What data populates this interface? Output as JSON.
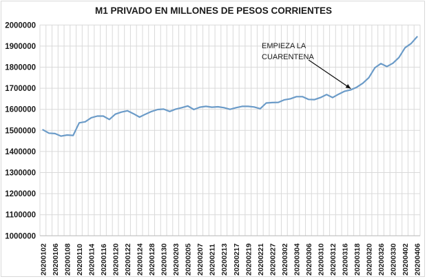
{
  "chart_data": {
    "type": "line",
    "title": "M1 PRIVADO EN MILLONES  DE PESOS CORRIENTES",
    "xlabel": "",
    "ylabel": "",
    "ylim": [
      1000000,
      2000000
    ],
    "yticks": [
      "1000000",
      "1100000",
      "1200000",
      "1300000",
      "1400000",
      "1500000",
      "1600000",
      "1700000",
      "1800000",
      "1900000",
      "2000000"
    ],
    "xtick_labels": [
      "20200102",
      "20200106",
      "20200108",
      "20200110",
      "20200114",
      "20200116",
      "20200120",
      "20200122",
      "20200124",
      "20200128",
      "20200130",
      "20200203",
      "20200205",
      "20200207",
      "20200211",
      "20200213",
      "20200217",
      "20200219",
      "20200221",
      "20200227",
      "20200302",
      "20200304",
      "20200306",
      "20200310",
      "20200312",
      "20200316",
      "20200318",
      "20200320",
      "20200326",
      "20200330",
      "20200402",
      "20200406"
    ],
    "xtick_every": 2,
    "grid": true,
    "legend": "none",
    "series": [
      {
        "name": "M1 privado",
        "color": "#6b9bc8",
        "values": [
          1503000,
          1487000,
          1485000,
          1473000,
          1478000,
          1476000,
          1536000,
          1541000,
          1560000,
          1568000,
          1568000,
          1552000,
          1577000,
          1587000,
          1593000,
          1579000,
          1563000,
          1577000,
          1590000,
          1599000,
          1601000,
          1590000,
          1601000,
          1608000,
          1616000,
          1599000,
          1610000,
          1614000,
          1610000,
          1612000,
          1608000,
          1600000,
          1608000,
          1614000,
          1614000,
          1611000,
          1603000,
          1630000,
          1632000,
          1633000,
          1645000,
          1650000,
          1660000,
          1660000,
          1647000,
          1646000,
          1656000,
          1670000,
          1656000,
          1672000,
          1686000,
          1692000,
          1705000,
          1724000,
          1750000,
          1797000,
          1817000,
          1803000,
          1819000,
          1846000,
          1892000,
          1912000,
          1944000
        ]
      }
    ],
    "annotations": [
      {
        "text_lines": [
          "EMPIEZA LA",
          "CUARENTENA"
        ],
        "points_to_index": 51
      }
    ]
  }
}
